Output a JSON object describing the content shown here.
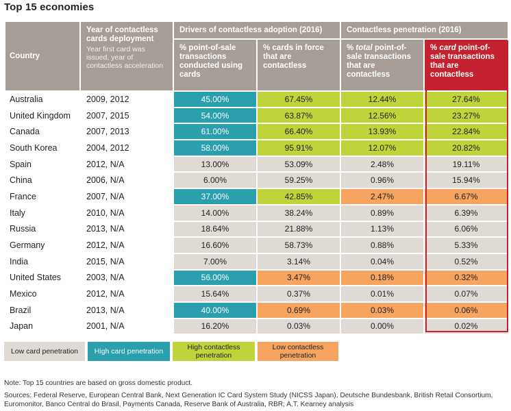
{
  "title": "Top 15 economies",
  "headers": {
    "country": "Country",
    "year": "Year of contactless cards deployment",
    "year_sub": "Year first card was issued, year of contactless acceleration",
    "group_drivers": "Drivers of contactless adoption (2016)",
    "group_penetration": "Contactless penetration (2016)",
    "col_pos": "% point-of-sale transactions conducted using cards",
    "col_cards": "% cards in force that are contactless",
    "col_total_pre": "% ",
    "col_total_em": "total",
    "col_total_post": " point-of-sale transactions that are contactless",
    "col_card_pre": "% ",
    "col_card_em": "card",
    "col_card_post": " point-of-sale transactions that are contactless"
  },
  "chart_data": {
    "type": "table",
    "title": "Top 15 economies",
    "columns": [
      "Country",
      "Year of contactless cards deployment",
      "% point-of-sale transactions conducted using cards",
      "% cards in force that are contactless",
      "% total point-of-sale transactions that are contactless",
      "% card point-of-sale transactions that are contactless"
    ],
    "rows": [
      {
        "country": "Australia",
        "year": "2009, 2012",
        "pos": "45.00%",
        "pos_class": "high",
        "cards": "67.45%",
        "cards_class": "hc",
        "total": "12.44%",
        "total_class": "hc",
        "card": "27.64%",
        "card_class": "hc"
      },
      {
        "country": "United Kingdom",
        "year": "2007, 2015",
        "pos": "54.00%",
        "pos_class": "high",
        "cards": "63.87%",
        "cards_class": "hc",
        "total": "12.56%",
        "total_class": "hc",
        "card": "23.27%",
        "card_class": "hc"
      },
      {
        "country": "Canada",
        "year": "2007, 2013",
        "pos": "61.00%",
        "pos_class": "high",
        "cards": "66.40%",
        "cards_class": "hc",
        "total": "13.93%",
        "total_class": "hc",
        "card": "22.84%",
        "card_class": "hc"
      },
      {
        "country": "South Korea",
        "year": "2004, 2012",
        "pos": "58.00%",
        "pos_class": "high",
        "cards": "95.91%",
        "cards_class": "hc",
        "total": "12.07%",
        "total_class": "hc",
        "card": "20.82%",
        "card_class": "hc"
      },
      {
        "country": "Spain",
        "year": "2012, N/A",
        "pos": "13.00%",
        "pos_class": "low",
        "cards": "53.09%",
        "cards_class": "low",
        "total": "2.48%",
        "total_class": "low",
        "card": "19.11%",
        "card_class": "low"
      },
      {
        "country": "China",
        "year": "2006, N/A",
        "pos": "6.00%",
        "pos_class": "low",
        "cards": "59.25%",
        "cards_class": "low",
        "total": "0.96%",
        "total_class": "low",
        "card": "15.94%",
        "card_class": "low"
      },
      {
        "country": "France",
        "year": "2007, N/A",
        "pos": "37.00%",
        "pos_class": "high",
        "cards": "42.85%",
        "cards_class": "hc",
        "total": "2.47%",
        "total_class": "lc",
        "card": "6.67%",
        "card_class": "lc"
      },
      {
        "country": "Italy",
        "year": "2010, N/A",
        "pos": "14.00%",
        "pos_class": "low",
        "cards": "38.24%",
        "cards_class": "low",
        "total": "0.89%",
        "total_class": "low",
        "card": "6.39%",
        "card_class": "low"
      },
      {
        "country": "Russia",
        "year": "2013, N/A",
        "pos": "18.64%",
        "pos_class": "low",
        "cards": "21.88%",
        "cards_class": "low",
        "total": "1.13%",
        "total_class": "low",
        "card": "6.06%",
        "card_class": "low"
      },
      {
        "country": "Germany",
        "year": "2012, N/A",
        "pos": "16.60%",
        "pos_class": "low",
        "cards": "58.73%",
        "cards_class": "low",
        "total": "0.88%",
        "total_class": "low",
        "card": "5.33%",
        "card_class": "low"
      },
      {
        "country": "India",
        "year": "2015, N/A",
        "pos": "7.00%",
        "pos_class": "low",
        "cards": "3.14%",
        "cards_class": "low",
        "total": "0.04%",
        "total_class": "low",
        "card": "0.52%",
        "card_class": "low"
      },
      {
        "country": "United States",
        "year": "2003, N/A",
        "pos": "56.00%",
        "pos_class": "high",
        "cards": "3.47%",
        "cards_class": "lc",
        "total": "0.18%",
        "total_class": "lc",
        "card": "0.32%",
        "card_class": "lc"
      },
      {
        "country": "Mexico",
        "year": "2012, N/A",
        "pos": "15.64%",
        "pos_class": "low",
        "cards": "0.37%",
        "cards_class": "low",
        "total": "0.01%",
        "total_class": "low",
        "card": "0.07%",
        "card_class": "low"
      },
      {
        "country": "Brazil",
        "year": "2013, N/A",
        "pos": "40.00%",
        "pos_class": "high",
        "cards": "0.69%",
        "cards_class": "lc",
        "total": "0.03%",
        "total_class": "lc",
        "card": "0.06%",
        "card_class": "lc"
      },
      {
        "country": "Japan",
        "year": "2001, N/A",
        "pos": "16.20%",
        "pos_class": "low",
        "cards": "0.03%",
        "cards_class": "low",
        "total": "0.00%",
        "total_class": "low",
        "card": "0.02%",
        "card_class": "low"
      }
    ]
  },
  "legend": {
    "low_card": "Low card penetration",
    "high_card": "High card penetration",
    "high_contactless": "High contactless penetration",
    "low_contactless": "Low contactless penetration"
  },
  "colors": {
    "header": "#a59d96",
    "header_highlight": "#c3222e",
    "low": "#e0dad4",
    "high": "#2a9fae",
    "high_contactless": "#bfd43a",
    "low_contactless": "#f6a45f"
  },
  "footer": {
    "note": "Note: Top 15 countries are based on gross domestic product.",
    "sources": "Sources: Federal Reserve, European Central Bank, Next Generation IC Card System Study (NICSS Japan), Deutsche Bundesbank, British Retail Consortium, Euromonitor, Banco Central do Brasil, Payments Canada, Reserve Bank of Australia, RBR; A.T. Kearney analysis"
  }
}
